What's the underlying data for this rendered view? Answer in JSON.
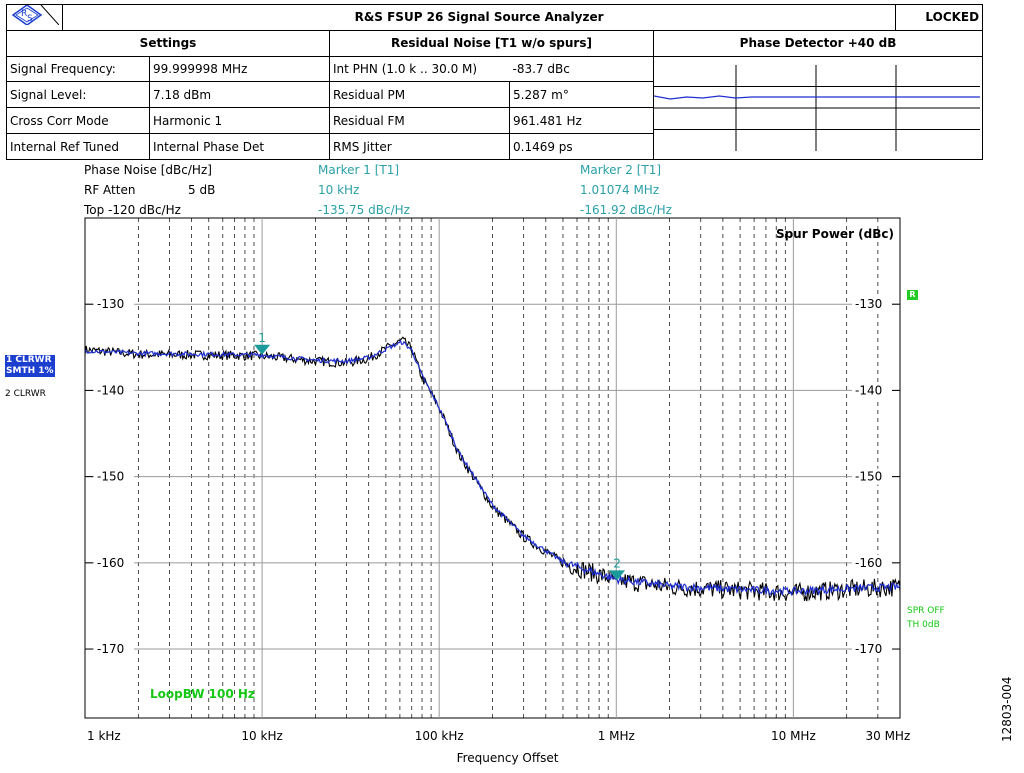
{
  "header": {
    "title": "R&S FSUP 26 Signal Source Analyzer",
    "status": "LOCKED",
    "logo_text": "R S",
    "settings_title": "Settings",
    "residual_title": "Residual Noise [T1 w/o spurs]",
    "phase_detector_title": "Phase Detector +40 dB"
  },
  "settings": [
    {
      "label": "Signal Frequency:",
      "value": "99.999998 MHz"
    },
    {
      "label": "Signal Level:",
      "value": "7.18 dBm"
    },
    {
      "label": "Cross Corr Mode",
      "value": "Harmonic 1"
    },
    {
      "label": "Internal Ref Tuned",
      "value": "Internal Phase Det"
    }
  ],
  "residual": [
    {
      "label": "Int PHN (1.0 k .. 30.0 M)",
      "value": "-83.7 dBc"
    },
    {
      "label": "Residual PM",
      "value": "5.287 m°"
    },
    {
      "label": "Residual FM",
      "value": "961.481 Hz"
    },
    {
      "label": "RMS Jitter",
      "value": "0.1469 ps"
    }
  ],
  "info": {
    "phase_noise_label": "Phase Noise [dBc/Hz]",
    "rf_atten": "RF Atten",
    "rf_atten_value": "5 dB",
    "top": "Top -120 dBc/Hz"
  },
  "markers": {
    "m1_title": "Marker 1 [T1]",
    "m1_freq": "10 kHz",
    "m1_level": "-135.75 dBc/Hz",
    "m2_title": "Marker 2 [T1]",
    "m2_freq": "1.01074 MHz",
    "m2_level": "-161.92 dBc/Hz"
  },
  "side_labels": {
    "trace1_a": "1 CLRWR",
    "trace1_b": "SMTH 1%",
    "trace2": "2 CLRWR",
    "spr_off": "SPR OFF",
    "th": "TH 0dB",
    "r_tag": "R",
    "figure_id": "12803-004"
  },
  "chart_data": {
    "type": "line",
    "title": "",
    "xlabel": "Frequency Offset",
    "ylabel": "",
    "corner_label": "Spur Power (dBc)",
    "annotation": "LoopBW 100 Hz",
    "x_scale": "log",
    "xlim": [
      1000,
      40000000
    ],
    "ylim": [
      -178,
      -120
    ],
    "x_ticks": [
      {
        "value": 1000,
        "label": "1 kHz"
      },
      {
        "value": 10000,
        "label": "10 kHz"
      },
      {
        "value": 100000,
        "label": "100 kHz"
      },
      {
        "value": 1000000,
        "label": "1 MHz"
      },
      {
        "value": 10000000,
        "label": "10 MHz"
      },
      {
        "value": 30000000,
        "label": "30 MHz"
      }
    ],
    "y_ticks": [
      -130,
      -140,
      -150,
      -160,
      -170
    ],
    "grid": true,
    "series": [
      {
        "color": "#000000",
        "x": [
          1000,
          2000,
          5000,
          10000,
          20000,
          30000,
          40000,
          55000,
          62000,
          70000,
          80000,
          100000,
          130000,
          200000,
          300000,
          500000,
          700000,
          1000000,
          2000000,
          5000000,
          10000000,
          20000000,
          40000000
        ],
        "y": [
          -135.3,
          -135.8,
          -135.9,
          -136.0,
          -136.6,
          -136.8,
          -136.3,
          -134.7,
          -134.2,
          -135.2,
          -138.5,
          -142.0,
          -147.5,
          -153.5,
          -157.0,
          -160.0,
          -161.0,
          -162.0,
          -162.8,
          -163.2,
          -163.5,
          -163.1,
          -162.8
        ]
      },
      {
        "color": "#1f2fd0",
        "x": [
          1000,
          2000,
          5000,
          10000,
          20000,
          30000,
          40000,
          55000,
          62000,
          70000,
          80000,
          100000,
          130000,
          200000,
          300000,
          500000,
          700000,
          1000000,
          2000000,
          5000000,
          10000000,
          20000000,
          40000000
        ],
        "y": [
          -135.4,
          -135.7,
          -135.8,
          -135.9,
          -136.5,
          -136.6,
          -136.2,
          -134.8,
          -134.4,
          -135.3,
          -138.3,
          -142.0,
          -147.3,
          -153.3,
          -156.9,
          -159.9,
          -160.9,
          -161.9,
          -162.7,
          -163.1,
          -163.3,
          -163.0,
          -162.8
        ]
      }
    ],
    "markers": [
      {
        "label": "1",
        "x": 10000,
        "y": -135.75
      },
      {
        "label": "2",
        "x": 1010740,
        "y": -161.92
      }
    ],
    "phase_detector_trace": {
      "x": [
        0,
        0.05,
        0.1,
        0.15,
        0.2,
        0.25,
        0.3,
        0.35,
        0.4,
        0.5,
        0.6,
        0.7,
        0.8,
        0.9,
        1.0
      ],
      "y": [
        0.45,
        0.6,
        0.5,
        0.55,
        0.45,
        0.55,
        0.5,
        0.5,
        0.5,
        0.5,
        0.5,
        0.5,
        0.5,
        0.5,
        0.5
      ]
    }
  }
}
